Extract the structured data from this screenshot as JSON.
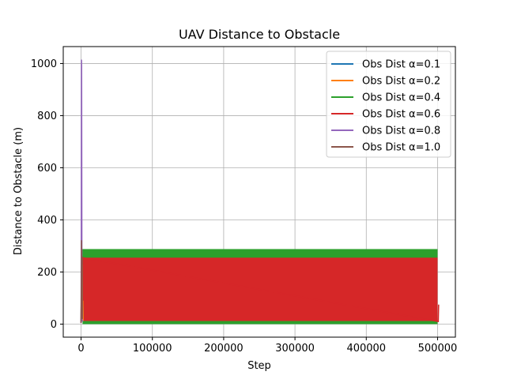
{
  "chart_data": {
    "type": "line",
    "title": "UAV Distance to Obstacle",
    "xlabel": "Step",
    "ylabel": "Distance to Obstacle (m)",
    "xlim": [
      -25000,
      525000
    ],
    "ylim": [
      -50,
      1065
    ],
    "xticks": [
      0,
      100000,
      200000,
      300000,
      400000,
      500000
    ],
    "xtick_labels": [
      "0",
      "100000",
      "200000",
      "300000",
      "400000",
      "500000"
    ],
    "yticks": [
      0,
      200,
      400,
      600,
      800,
      1000
    ],
    "ytick_labels": [
      "0",
      "200",
      "400",
      "600",
      "800",
      "1000"
    ],
    "grid": true,
    "legend_position": "top-right",
    "series": [
      {
        "name": "Obs Dist α=0.1",
        "color": "#1f77b4",
        "x": [
          0,
          500,
          1000,
          1500,
          2000,
          2500,
          3000
        ],
        "y": [
          5,
          120,
          15,
          200,
          25,
          80,
          10
        ]
      },
      {
        "name": "Obs Dist α=0.2",
        "color": "#ff7f0e",
        "x": [
          0,
          500,
          1000,
          1500,
          2000,
          2500,
          3000
        ],
        "y": [
          5,
          150,
          20,
          230,
          30,
          90,
          12
        ]
      },
      {
        "name": "Obs Dist α=0.4",
        "color": "#2ca02c",
        "band": {
          "x_start": 2000,
          "x_end": 500000,
          "y_low": 0,
          "y_high": 288
        },
        "x": [
          0,
          500,
          1000,
          1500,
          2000
        ],
        "y": [
          5,
          180,
          10,
          250,
          288
        ]
      },
      {
        "name": "Obs Dist α=0.6",
        "color": "#d62728",
        "band": {
          "x_start": 2000,
          "x_end": 500000,
          "y_low": 12,
          "y_high": 255
        },
        "x": [
          0,
          500,
          1000,
          1500,
          2000,
          501000,
          501500
        ],
        "y": [
          5,
          160,
          12,
          240,
          255,
          10,
          75
        ]
      },
      {
        "name": "Obs Dist α=0.8",
        "color": "#9467bd",
        "x": [
          0,
          200,
          400,
          600,
          800,
          1000,
          1200,
          1400,
          1600
        ],
        "y": [
          5,
          300,
          700,
          1015,
          990,
          600,
          200,
          50,
          10
        ]
      },
      {
        "name": "Obs Dist α=1.0",
        "color": "#8c564b",
        "x": [
          0,
          300,
          600,
          900,
          1200,
          1500,
          1800
        ],
        "y": [
          5,
          150,
          322,
          200,
          80,
          260,
          20
        ]
      }
    ]
  }
}
